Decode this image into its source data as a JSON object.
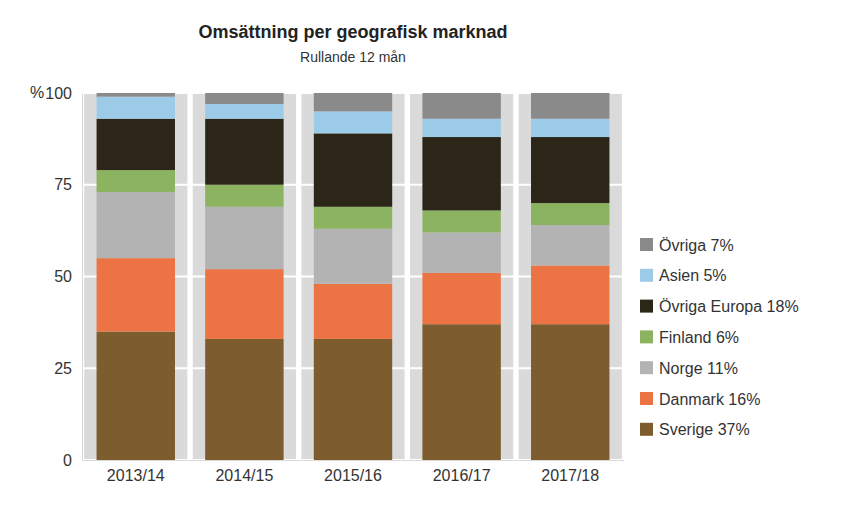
{
  "chart_data": {
    "type": "bar",
    "title": "Omsättning per geografisk marknad",
    "subtitle": "Rullande 12 mån",
    "ylabel": "%",
    "categories": [
      "2013/14",
      "2014/15",
      "2015/16",
      "2016/17",
      "2017/18"
    ],
    "series": [
      {
        "name": "Sverige 37%",
        "color": "#7d5c2e",
        "values": [
          35,
          33,
          33,
          37,
          37
        ]
      },
      {
        "name": "Danmark 16%",
        "color": "#ec7344",
        "values": [
          20,
          19,
          15,
          14,
          16
        ]
      },
      {
        "name": "Norge 11%",
        "color": "#b3b3b3",
        "values": [
          18,
          17,
          15,
          11,
          11
        ]
      },
      {
        "name": "Finland 6%",
        "color": "#8cb360",
        "values": [
          6,
          6,
          6,
          6,
          6
        ]
      },
      {
        "name": "Övriga Europa 18%",
        "color": "#2b2618",
        "values": [
          14,
          18,
          20,
          20,
          18
        ]
      },
      {
        "name": "Asien 5%",
        "color": "#9ccbe8",
        "values": [
          6,
          4,
          6,
          5,
          5
        ]
      },
      {
        "name": "Övriga 7%",
        "color": "#8a8a8a",
        "values": [
          1,
          3,
          5,
          7,
          7
        ]
      }
    ],
    "ylim": [
      0,
      100
    ],
    "yticks": [
      0,
      25,
      50,
      75,
      100
    ],
    "stacked": true,
    "grid": true,
    "legend": "right"
  }
}
